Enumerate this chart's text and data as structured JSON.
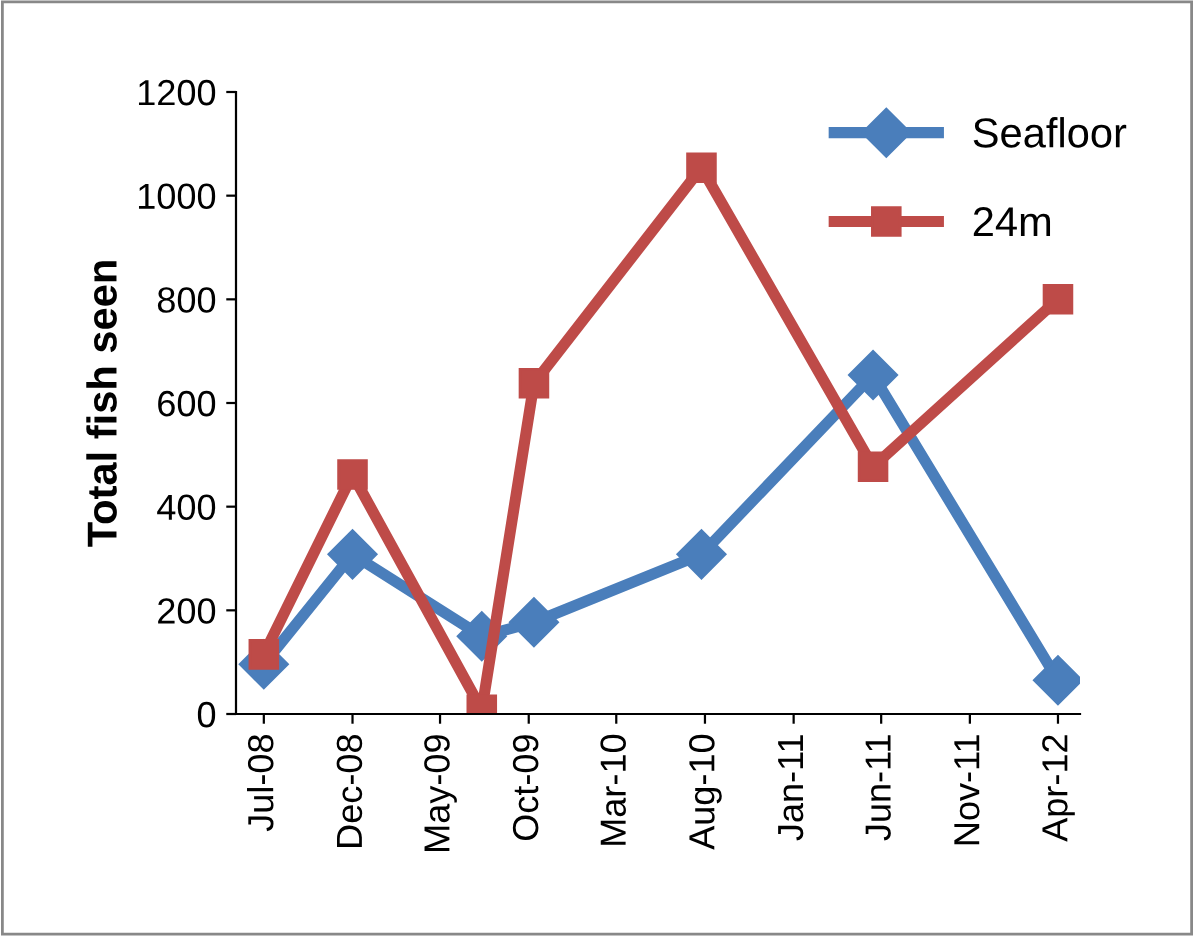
{
  "chart_data": {
    "type": "line",
    "ylabel": "Total fish seen",
    "xlim": [
      "2008-05-14",
      "2012-05-09"
    ],
    "xticks": [
      {
        "value": "2008-07-01",
        "label": "Jul-08"
      },
      {
        "value": "2008-12-01",
        "label": "Dec-08"
      },
      {
        "value": "2009-05-01",
        "label": "May-09"
      },
      {
        "value": "2009-10-01",
        "label": "Oct-09"
      },
      {
        "value": "2010-03-01",
        "label": "Mar-10"
      },
      {
        "value": "2010-08-01",
        "label": "Aug-10"
      },
      {
        "value": "2011-01-01",
        "label": "Jan-11"
      },
      {
        "value": "2011-06-01",
        "label": "Jun-11"
      },
      {
        "value": "2011-11-01",
        "label": "Nov-11"
      },
      {
        "value": "2012-04-01",
        "label": "Apr-12"
      }
    ],
    "ylim": [
      0,
      1200
    ],
    "yticks": [
      0,
      200,
      400,
      600,
      800,
      1000,
      1200
    ],
    "grid": false,
    "legend": "top right",
    "line_style": "solid",
    "series": [
      {
        "name": "Seafloor",
        "color": "#4a7ebb",
        "marker": "diamond",
        "x": [
          "2008-07-01",
          "2008-12-01",
          "2009-07-12",
          "2009-10-10",
          "2010-07-26",
          "2011-05-18",
          "2012-04-01"
        ],
        "values": [
          96,
          308,
          150,
          177,
          308,
          654,
          65
        ]
      },
      {
        "name": "24m",
        "color": "#be4b48",
        "marker": "square",
        "x": [
          "2008-07-01",
          "2008-12-01",
          "2009-07-12",
          "2009-10-10",
          "2010-07-26",
          "2011-05-18",
          "2012-04-01"
        ],
        "values": [
          115,
          462,
          8,
          638,
          1054,
          477,
          800
        ]
      }
    ]
  }
}
